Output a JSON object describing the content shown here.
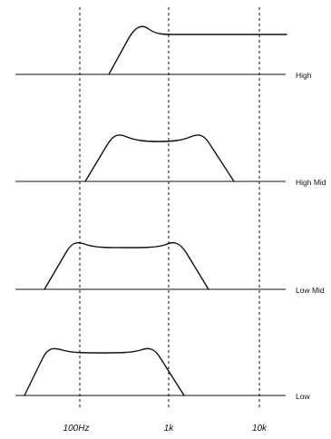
{
  "diagram": {
    "bands": [
      {
        "label": "High"
      },
      {
        "label": "High Mid"
      },
      {
        "label": "Low Mid"
      },
      {
        "label": "Low"
      }
    ],
    "frequency_labels": [
      "100Hz",
      "1k",
      "10k"
    ]
  },
  "colors": {
    "background": "#ffffff",
    "line": "#111111"
  }
}
